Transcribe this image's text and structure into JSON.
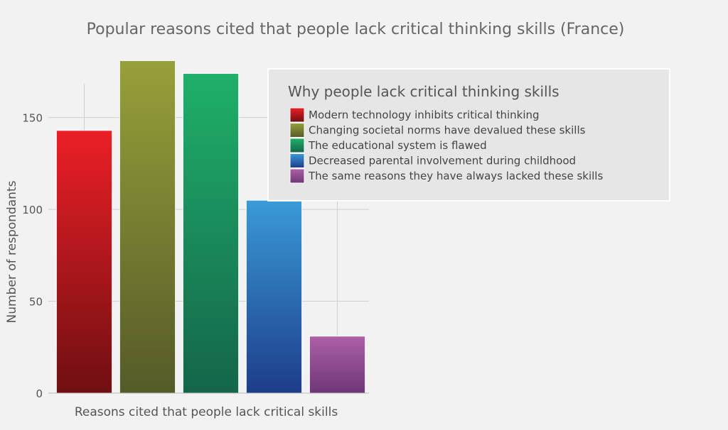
{
  "chart_data": {
    "type": "bar",
    "title": "Popular reasons cited that people lack critical thinking skills (France)",
    "xlabel": "Reasons cited that people lack critical skills",
    "ylabel": "Number of respondants",
    "ylim": [
      0,
      180
    ],
    "yticks": [
      0,
      50,
      100,
      150
    ],
    "grid": true,
    "legend_title": "Why people lack critical thinking skills",
    "legend_position": "top-right",
    "categories": [
      "Modern technology inhibits critical thinking",
      "Changing societal norms have devalued these skills",
      "The educational system is flawed",
      "Decreased parental involvement during childhood",
      "The same reasons they have always lacked these skills"
    ],
    "values": [
      143,
      181,
      174,
      105,
      31
    ],
    "colors": [
      {
        "top": "#ec1f26",
        "bottom": "#6f0f12"
      },
      {
        "top": "#97a03a",
        "bottom": "#565a28"
      },
      {
        "top": "#1fb06a",
        "bottom": "#14654a"
      },
      {
        "top": "#3a9ad8",
        "bottom": "#1d3d8a"
      },
      {
        "top": "#ac60a6",
        "bottom": "#6f3778"
      }
    ]
  }
}
